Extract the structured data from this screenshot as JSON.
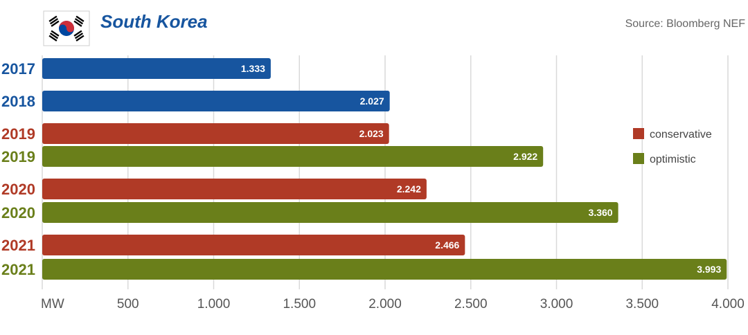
{
  "header": {
    "title": "South Korea",
    "source": "Source: Bloomberg NEF",
    "flag_icon": "south-korea-flag-icon"
  },
  "colors": {
    "actual": "#17559f",
    "conservative": "#b03a26",
    "optimistic": "#6a7f1a",
    "grid": "#d9d9d9",
    "title": "#17559f"
  },
  "chart_data": {
    "type": "bar",
    "orientation": "horizontal",
    "title": "South Korea",
    "source": "Source: Bloomberg NEF",
    "unit_label": "MW",
    "xlim": [
      0,
      4000
    ],
    "xticks": [
      0,
      500,
      1000,
      1500,
      2000,
      2500,
      3000,
      3500,
      4000
    ],
    "xtick_labels": [
      "MW",
      "500",
      "1.000",
      "1.500",
      "2.000",
      "2.500",
      "3.000",
      "3.500",
      "4.000"
    ],
    "grid": true,
    "legend_position": "right",
    "legend": [
      {
        "name": "conservative",
        "color": "#b03a26"
      },
      {
        "name": "optimistic",
        "color": "#6a7f1a"
      }
    ],
    "bars": [
      {
        "year": "2017",
        "value": 1333,
        "label": "1.333",
        "kind": "actual"
      },
      {
        "year": "2018",
        "value": 2027,
        "label": "2.027",
        "kind": "actual"
      },
      {
        "year": "2019",
        "value": 2023,
        "label": "2.023",
        "kind": "conservative"
      },
      {
        "year": "2019",
        "value": 2922,
        "label": "2.922",
        "kind": "optimistic"
      },
      {
        "year": "2020",
        "value": 2242,
        "label": "2.242",
        "kind": "conservative"
      },
      {
        "year": "2020",
        "value": 3360,
        "label": "3.360",
        "kind": "optimistic"
      },
      {
        "year": "2021",
        "value": 2466,
        "label": "2.466",
        "kind": "conservative"
      },
      {
        "year": "2021",
        "value": 3993,
        "label": "3.993",
        "kind": "optimistic"
      }
    ]
  }
}
